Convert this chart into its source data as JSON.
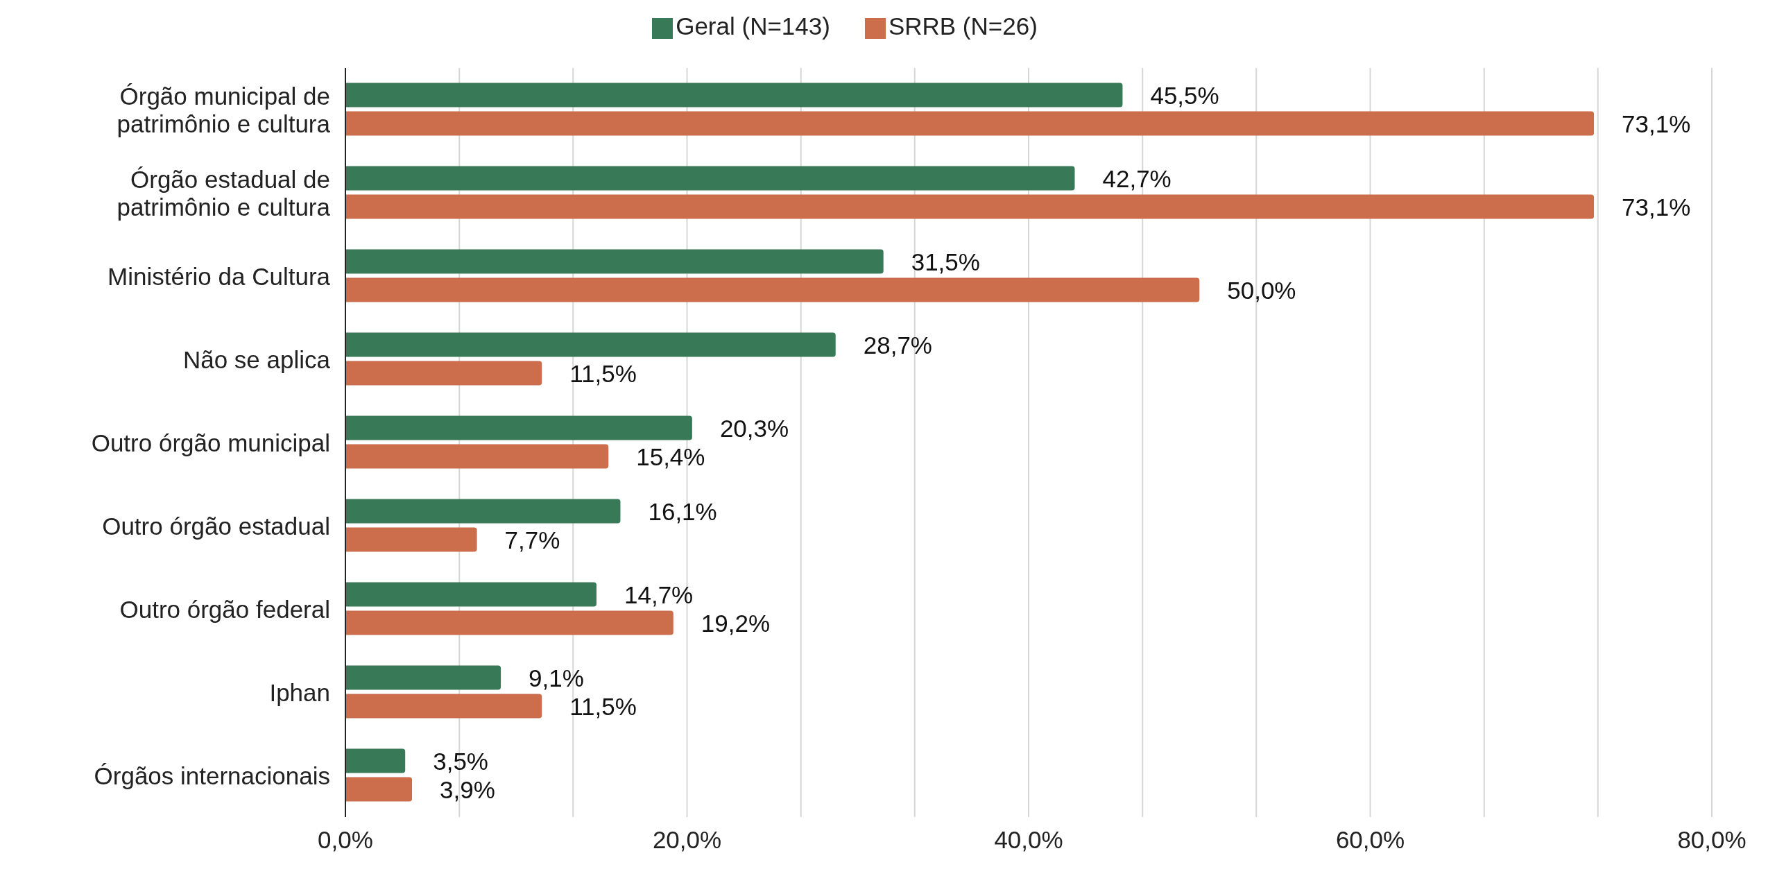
{
  "chart_data": {
    "type": "bar",
    "orientation": "horizontal",
    "categories": [
      "Órgão municipal de patrimônio e cultura",
      "Órgão estadual de patrimônio e cultura",
      "Ministério da Cultura",
      "Não se aplica",
      "Outro órgão municipal",
      "Outro órgão estadual",
      "Outro órgão federal",
      "Iphan",
      "Órgãos internacionais"
    ],
    "series": [
      {
        "name": "Geral (N=143)",
        "color": "#387a57",
        "values": [
          45.5,
          42.7,
          31.5,
          28.7,
          20.3,
          16.1,
          14.7,
          9.1,
          3.5
        ],
        "value_labels": [
          "45,5%",
          "42,7%",
          "31,5%",
          "28,7%",
          "20,3%",
          "16,1%",
          "14,7%",
          "9,1%",
          "3,5%"
        ]
      },
      {
        "name": "SRRB (N=26)",
        "color": "#cc6d4b",
        "values": [
          73.1,
          73.1,
          50.0,
          11.5,
          15.4,
          7.7,
          19.2,
          11.5,
          3.9
        ],
        "value_labels": [
          "73,1%",
          "73,1%",
          "50,0%",
          "11,5%",
          "15,4%",
          "7,7%",
          "19,2%",
          "11,5%",
          "3,9%"
        ]
      }
    ],
    "xlim": [
      0,
      80
    ],
    "xticks": [
      {
        "value": 0,
        "label": "0,0%"
      },
      {
        "value": 6.67,
        "label": null
      },
      {
        "value": 13.33,
        "label": null
      },
      {
        "value": 20,
        "label": "20,0%"
      },
      {
        "value": 26.67,
        "label": null
      },
      {
        "value": 33.33,
        "label": null
      },
      {
        "value": 40,
        "label": "40,0%"
      },
      {
        "value": 46.67,
        "label": null
      },
      {
        "value": 53.33,
        "label": null
      },
      {
        "value": 60,
        "label": "60,0%"
      },
      {
        "value": 66.67,
        "label": null
      },
      {
        "value": 73.33,
        "label": null
      },
      {
        "value": 80,
        "label": "80,0%"
      }
    ],
    "grid": "x",
    "legend": "top"
  }
}
